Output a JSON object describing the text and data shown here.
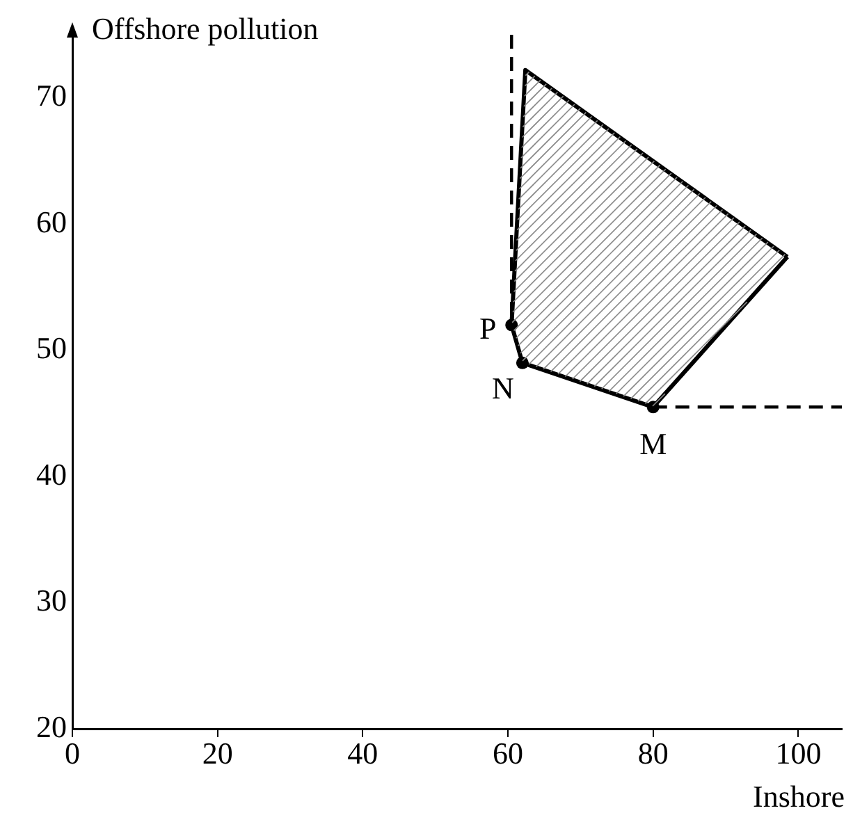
{
  "chart_data": {
    "type": "line",
    "xlabel": "Inshore",
    "ylabel": "Offshore pollution",
    "xlim": [
      0,
      106
    ],
    "xticks": [
      0,
      20,
      40,
      60,
      80,
      100
    ],
    "ylim": [
      20,
      75
    ],
    "yticks": [
      20,
      30,
      40,
      50,
      60,
      70
    ],
    "grid": false,
    "legend": false,
    "marker": "none",
    "series": [
      {
        "type": "line",
        "color": "#000000",
        "x": [
          60.5,
          62.4,
          98.5
        ],
        "values": [
          52,
          72.2,
          57.4
        ]
      },
      {
        "type": "line",
        "color": "#000000",
        "x": [
          60.5,
          62,
          80,
          98.5
        ],
        "values": [
          52,
          49,
          45.5,
          57.4
        ]
      },
      {
        "type": "line",
        "color": "#000000",
        "line_style": "dashed",
        "x": [
          60.5,
          60.5
        ],
        "values": [
          75,
          52
        ]
      },
      {
        "type": "line",
        "color": "#000000",
        "line_style": "dashed",
        "x": [
          80,
          106
        ],
        "values": [
          45.5,
          45.5
        ]
      },
      {
        "type": "scatter",
        "color": "#000000",
        "marker": "circle",
        "x": [
          60.5,
          62,
          80
        ],
        "values": [
          52,
          49,
          45.5
        ]
      }
    ],
    "annotations": [
      {
        "text": "P",
        "x": 60.5,
        "y": 52
      },
      {
        "text": "N",
        "x": 62,
        "y": 49
      },
      {
        "text": "M",
        "x": 80,
        "y": 45.5
      }
    ]
  }
}
